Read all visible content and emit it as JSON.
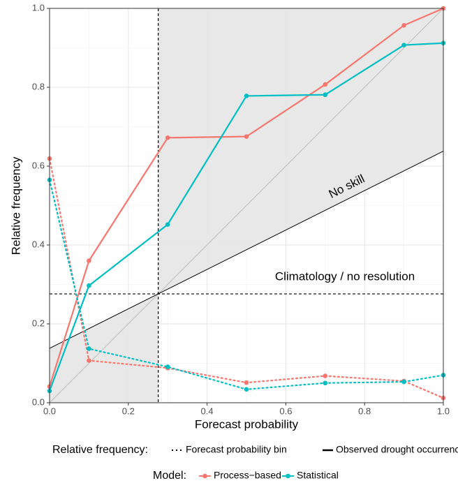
{
  "chart_data": {
    "type": "line",
    "x_label": "Forecast probability",
    "y_label": "Relative frequency",
    "x": [
      0.0,
      0.1,
      0.3,
      0.5,
      0.7,
      0.9,
      1.0
    ],
    "series": [
      {
        "name": "Process−based",
        "color": "#f8766d",
        "values": [
          0.041,
          0.36,
          0.672,
          0.675,
          0.807,
          0.957,
          1.0
        ],
        "bin_values": [
          0.619,
          0.107,
          0.088,
          0.051,
          0.068,
          0.055,
          0.012
        ]
      },
      {
        "name": "Statistical",
        "color": "#00bfc4",
        "values": [
          0.03,
          0.297,
          0.452,
          0.778,
          0.781,
          0.907,
          0.912
        ],
        "bin_values": [
          0.565,
          0.137,
          0.091,
          0.034,
          0.05,
          0.053,
          0.07
        ]
      }
    ],
    "climatology": 0.276,
    "annotations": {
      "no_skill": "No skill",
      "climatology": "Climatology / no resolution"
    },
    "linetype_legend": {
      "title": "Relative frequency:",
      "dotted": "Forecast probability bin",
      "solid": "Observed drought occurrence"
    },
    "color_legend_title": "Model:",
    "xlim": [
      0,
      1
    ],
    "ylim": [
      0,
      1
    ],
    "xticks": [
      {
        "value": 0,
        "label": "0.0"
      },
      0.2,
      0.4,
      0.6,
      0.8,
      {
        "value": 1,
        "label": "1.0"
      }
    ],
    "yticks": [
      {
        "value": 0,
        "label": "0.0"
      },
      0.2,
      0.4,
      0.6,
      0.8,
      {
        "value": 1,
        "label": "1.0"
      }
    ],
    "grid": true
  }
}
